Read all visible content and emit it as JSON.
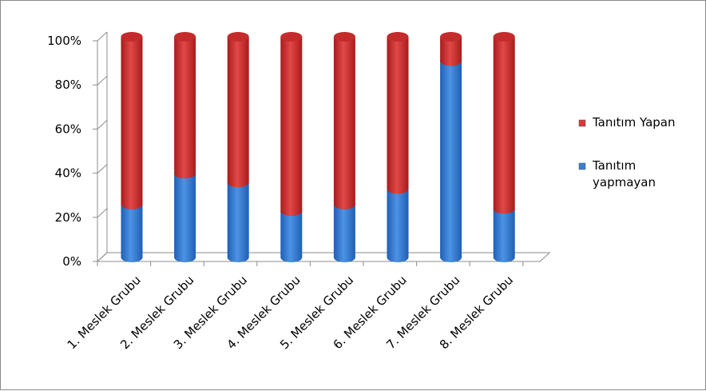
{
  "chart_data": {
    "type": "bar",
    "stacked": true,
    "percent": true,
    "categories": [
      "1. Meslek Grubu",
      "2. Meslek Grubu",
      "3. Meslek Grubu",
      "4. Meslek Grubu",
      "5. Meslek Grubu",
      "6. Meslek Grubu",
      "7. Meslek Grubu",
      "8. Meslek Grubu"
    ],
    "series": [
      {
        "name": "Tanıtım yapmayan",
        "color": "#3a7fd5",
        "values": [
          24,
          38,
          34,
          21,
          24,
          31,
          89,
          22
        ]
      },
      {
        "name": "Tanıtım Yapan",
        "color": "#d63a3a",
        "values": [
          76,
          62,
          66,
          79,
          76,
          69,
          11,
          78
        ]
      }
    ],
    "yticks": [
      "0%",
      "20%",
      "40%",
      "60%",
      "80%",
      "100%"
    ],
    "ylim": [
      0,
      100
    ],
    "legend": {
      "position": "right",
      "items": [
        {
          "lines": [
            "Tanıtım Yapan"
          ],
          "color": "#d63a3a"
        },
        {
          "lines": [
            "Tanıtım",
            "yapmayan"
          ],
          "color": "#3a7fd5"
        }
      ]
    },
    "grid": false
  }
}
